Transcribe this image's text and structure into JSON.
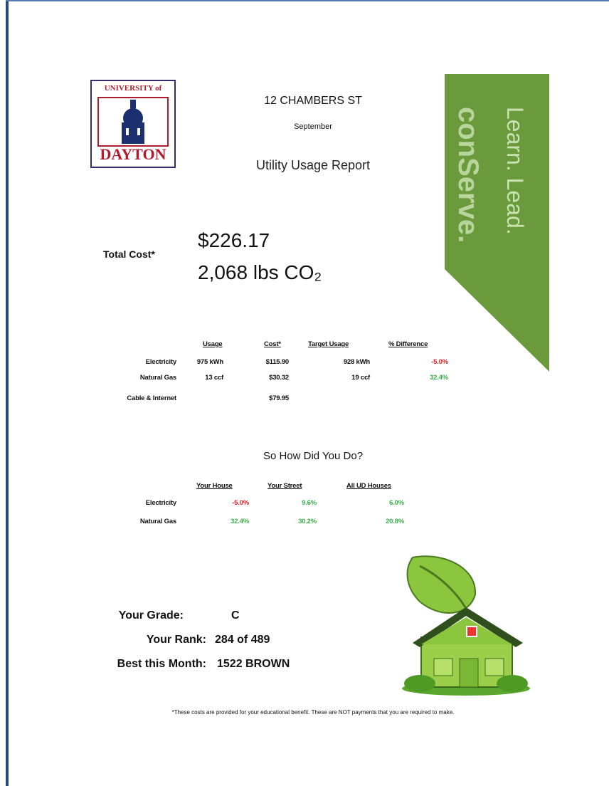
{
  "logo": {
    "top": "UNIVERSITY of",
    "bottom": "DAYTON"
  },
  "header": {
    "address": "12 CHAMBERS ST",
    "month": "September",
    "title": "Utility Usage Report"
  },
  "banner": {
    "line1": "Learn. Lead.",
    "line2": "conServe."
  },
  "summary": {
    "label": "Total Cost*",
    "cost": "$226.17",
    "co2": "2,068 lbs CO₂"
  },
  "usage_table": {
    "headers": [
      "Usage",
      "Cost*",
      "Target Usage",
      "% Difference"
    ],
    "rows": [
      [
        "Electricity",
        "975 kWh",
        "$115.90",
        "928 kWh",
        "-5.0%"
      ],
      [
        "Natural Gas",
        "13 ccf",
        "$30.32",
        "19 ccf",
        "32.4%"
      ],
      [
        "Cable & Internet",
        "$79.95"
      ]
    ]
  },
  "comparison": {
    "title": "So How Did You Do?",
    "headers": [
      "Your House",
      "Your Street",
      "All UD Houses"
    ],
    "rows": [
      [
        "Electricity",
        "-5.0%",
        "9.6%",
        "6.0%"
      ],
      [
        "Natural Gas",
        "32.4%",
        "30.2%",
        "20.8%"
      ]
    ]
  },
  "results": {
    "grade_label": "Your Grade:",
    "grade": "C",
    "rank_label": "Your Rank:",
    "rank": "284 of 489",
    "best_label": "Best this Month:",
    "best": "1522 BROWN"
  },
  "footnote": "*These costs are provided for your educational benefit. These are NOT payments that you are required to make."
}
